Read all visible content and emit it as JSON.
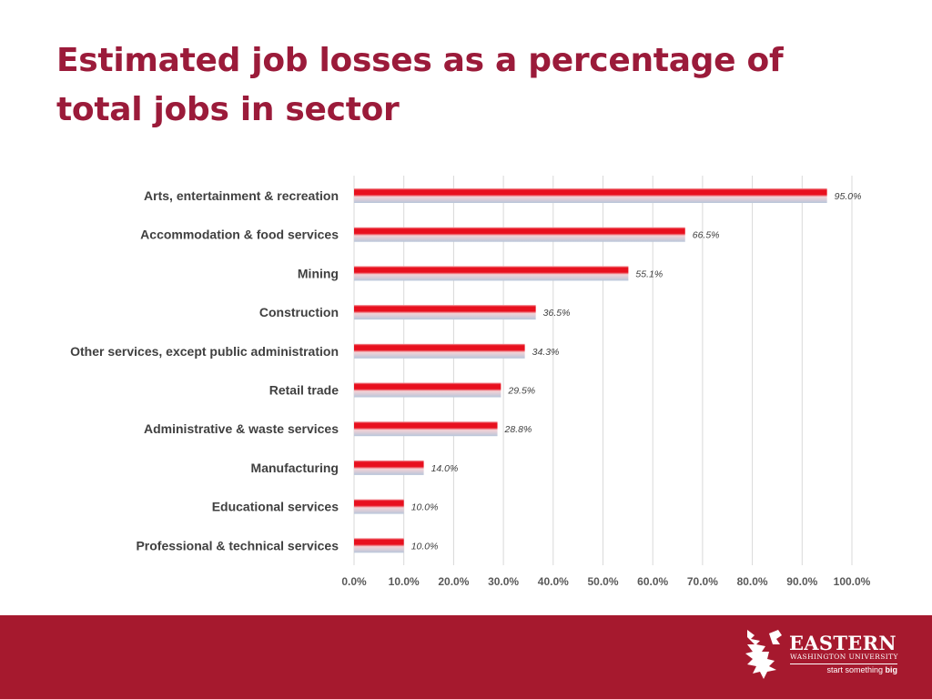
{
  "slide": {
    "title": "Estimated job losses as a percentage of total jobs in sector"
  },
  "chart_data": {
    "type": "bar",
    "orientation": "horizontal",
    "title": "",
    "xlabel": "",
    "ylabel": "",
    "xlim": [
      0,
      100
    ],
    "grid": true,
    "legend": "none",
    "categories": [
      "Arts, entertainment & recreation",
      "Accommodation & food services",
      "Mining",
      "Construction",
      "Other services, except public administration",
      "Retail trade",
      "Administrative & waste services",
      "Manufacturing",
      "Educational services",
      "Professional & technical services"
    ],
    "values": [
      95.0,
      66.5,
      55.1,
      36.5,
      34.3,
      29.5,
      28.8,
      14.0,
      10.0,
      10.0
    ],
    "value_labels": [
      "95.0%",
      "66.5%",
      "55.1%",
      "36.5%",
      "34.3%",
      "29.5%",
      "28.8%",
      "14.0%",
      "10.0%",
      "10.0%"
    ],
    "x_ticks": [
      "0.0%",
      "10.0%",
      "20.0%",
      "30.0%",
      "40.0%",
      "50.0%",
      "60.0%",
      "70.0%",
      "80.0%",
      "90.0%",
      "100.0%"
    ],
    "colors": {
      "bar_top": "#e8101e",
      "bar_bottom": "#b8c6da",
      "title": "#9b1b3a",
      "footer": "#a6192e"
    }
  },
  "footer": {
    "logo": {
      "icon": "eagle-logo-icon",
      "name": "EASTERN",
      "subtitle": "WASHINGTON UNIVERSITY",
      "tagline_start": "start something ",
      "tagline_bold": "big"
    }
  }
}
